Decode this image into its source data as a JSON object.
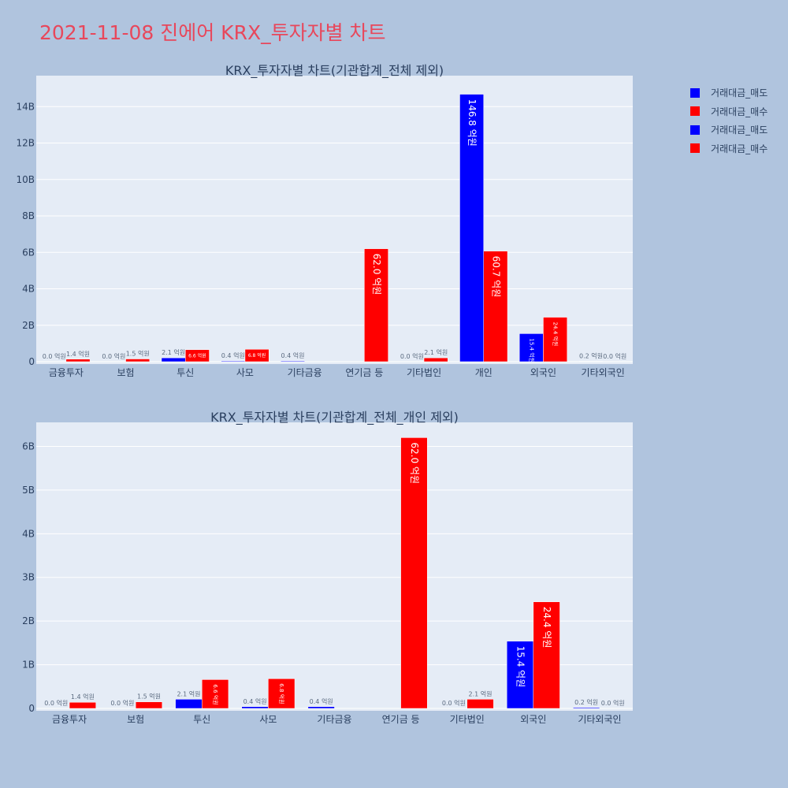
{
  "main_title": "2021-11-08 진에어 KRX_투자자별 차트",
  "legend": [
    {
      "label": "거래대금_매도",
      "color": "#0000ff"
    },
    {
      "label": "거래대금_매수",
      "color": "#ff0000"
    },
    {
      "label": "거래대금_매도",
      "color": "#0000ff"
    },
    {
      "label": "거래대금_매수",
      "color": "#ff0000"
    }
  ],
  "colors": {
    "sell": "#0000ff",
    "buy": "#ff0000",
    "plot_bg": "#e5ecf6",
    "page_bg": "#b0c4de",
    "axis_text": "#2a3f5f"
  },
  "chart_data": [
    {
      "type": "bar",
      "title": "KRX_투자자별 차트(기관합계_전체 제외)",
      "categories": [
        "금융투자",
        "보험",
        "투신",
        "사모",
        "기타금융",
        "연기금 등",
        "기타법인",
        "개인",
        "외국인",
        "기타외국인"
      ],
      "ylim": [
        0,
        15.7
      ],
      "yticks": [
        0,
        2,
        4,
        6,
        8,
        10,
        12,
        14
      ],
      "ytick_labels": [
        "0",
        "2B",
        "4B",
        "6B",
        "8B",
        "10B",
        "12B",
        "14B"
      ],
      "grid": true,
      "series": [
        {
          "name": "거래대금_매도",
          "color": "#0000ff",
          "values": [
            0.0,
            0.0,
            0.21,
            0.04,
            0.04,
            null,
            0.0,
            14.68,
            1.54,
            0.02
          ],
          "labels": [
            "0.0 억원",
            "0.0 억원",
            "2.1 억원",
            "0.4 억원",
            "0.4 억원",
            "",
            "0.0 억원",
            "146.8 억원",
            "15.4 억원",
            "0.2 억원"
          ]
        },
        {
          "name": "거래대금_매수",
          "color": "#ff0000",
          "values": [
            0.14,
            0.15,
            0.66,
            0.68,
            null,
            6.2,
            0.21,
            6.07,
            2.44,
            0.0
          ],
          "labels": [
            "1.4 억원",
            "1.5 억원",
            "6.6 억원",
            "6.8 억원",
            "",
            "62.0 억원",
            "2.1 억원",
            "60.7 억원",
            "24.4 억원",
            "0.0 억원"
          ]
        }
      ]
    },
    {
      "type": "bar",
      "title": "KRX_투자자별 차트(기관합계_전체_개인 제외)",
      "categories": [
        "금융투자",
        "보험",
        "투신",
        "사모",
        "기타금융",
        "연기금 등",
        "기타법인",
        "외국인",
        "기타외국인"
      ],
      "ylim": [
        0,
        6.55
      ],
      "yticks": [
        0,
        1,
        2,
        3,
        4,
        5,
        6
      ],
      "ytick_labels": [
        "0",
        "1B",
        "2B",
        "3B",
        "4B",
        "5B",
        "6B"
      ],
      "grid": true,
      "series": [
        {
          "name": "거래대금_매도",
          "color": "#0000ff",
          "values": [
            0.0,
            0.0,
            0.21,
            0.04,
            0.04,
            null,
            0.0,
            1.54,
            0.02
          ],
          "labels": [
            "0.0 억원",
            "0.0 억원",
            "2.1 억원",
            "0.4 억원",
            "0.4 억원",
            "",
            "0.0 억원",
            "15.4 억원",
            "0.2 억원"
          ]
        },
        {
          "name": "거래대금_매수",
          "color": "#ff0000",
          "values": [
            0.14,
            0.15,
            0.66,
            0.68,
            null,
            6.2,
            0.21,
            2.44,
            0.0
          ],
          "labels": [
            "1.4 억원",
            "1.5 억원",
            "6.6 억원",
            "6.8 억원",
            "",
            "62.0 억원",
            "2.1 억원",
            "24.4 억원",
            "0.0 억원"
          ]
        }
      ]
    }
  ]
}
